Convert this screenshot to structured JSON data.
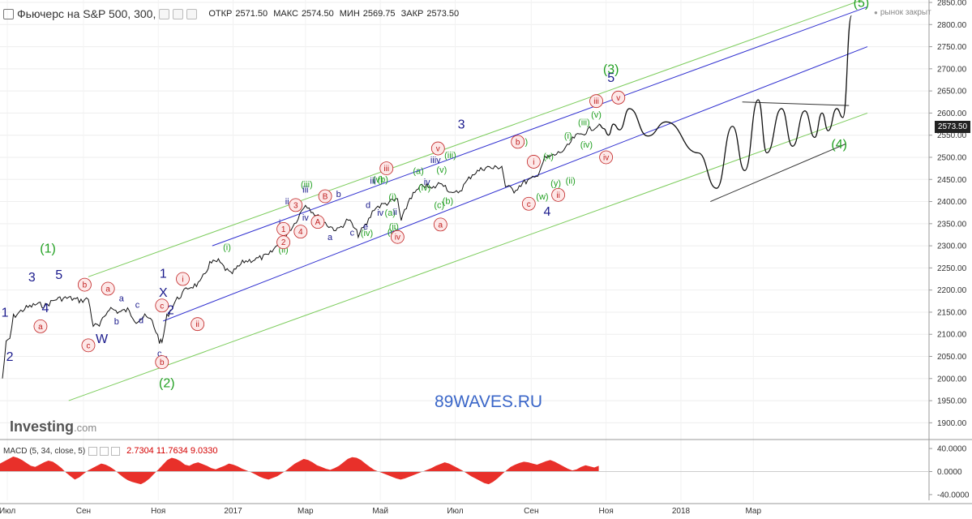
{
  "header": {
    "title": "Фьючерс на S&P 500, 300,",
    "ohlc": [
      {
        "label": "ОТКР",
        "value": "2571.50"
      },
      {
        "label": "МАКС",
        "value": "2574.50"
      },
      {
        "label": "МИН",
        "value": "2569.75"
      },
      {
        "label": "ЗАКР",
        "value": "2573.50"
      }
    ]
  },
  "market_status": "рынок закрыт",
  "last_price": "2573.50",
  "watermark": "89WAVES.RU",
  "logo": {
    "main": "Investing",
    "suffix": ".com"
  },
  "macd": {
    "label": "MACD (5, 34, close, 5)",
    "values": "2.7304  11.7634  9.0330"
  },
  "colors": {
    "price": "#111111",
    "green_wave": "#22a022",
    "blue_wave": "#1a1a8c",
    "red_circle": "#c02020",
    "channel_blue": "#3030d0",
    "channel_green": "#7ccc5c",
    "macd_fill": "#e8302a",
    "label_blue": "#3a66c8"
  },
  "chart_data": [
    {
      "type": "line",
      "series_name": "",
      "ylim": [
        1875,
        2850
      ],
      "y_ticks": [
        "2850.00",
        "2800.00",
        "2750.00",
        "2700.00",
        "2650.00",
        "2600.00",
        "2550.00",
        "2500.00",
        "2450.00",
        "2400.00",
        "2350.00",
        "2300.00",
        "2250.00",
        "2200.00",
        "2150.00",
        "2100.00",
        "2050.00",
        "2000.00",
        "1950.00",
        "1900.00"
      ],
      "x_ticks": [
        "Июл",
        "Сен",
        "Ноя",
        "2017",
        "Мар",
        "Май",
        "Июл",
        "Сен",
        "Ноя",
        "2018",
        "Мар"
      ],
      "price": [
        {
          "x": "2016-06-27",
          "y": 2000
        },
        {
          "x": "2016-06-30",
          "y": 2080
        },
        {
          "x": "2016-07-03",
          "y": 2090
        },
        {
          "x": "2016-07-06",
          "y": 2140
        },
        {
          "x": "2016-07-15",
          "y": 2158
        },
        {
          "x": "2016-07-25",
          "y": 2168
        },
        {
          "x": "2016-08-01",
          "y": 2165
        },
        {
          "x": "2016-08-10",
          "y": 2180
        },
        {
          "x": "2016-08-20",
          "y": 2182
        },
        {
          "x": "2016-08-30",
          "y": 2176
        },
        {
          "x": "2016-09-05",
          "y": 2180
        },
        {
          "x": "2016-09-09",
          "y": 2120
        },
        {
          "x": "2016-09-14",
          "y": 2118
        },
        {
          "x": "2016-09-22",
          "y": 2160
        },
        {
          "x": "2016-09-30",
          "y": 2150
        },
        {
          "x": "2016-10-07",
          "y": 2155
        },
        {
          "x": "2016-10-14",
          "y": 2130
        },
        {
          "x": "2016-10-21",
          "y": 2140
        },
        {
          "x": "2016-10-27",
          "y": 2130
        },
        {
          "x": "2016-11-02",
          "y": 2085
        },
        {
          "x": "2016-11-04",
          "y": 2080
        },
        {
          "x": "2016-11-08",
          "y": 2140
        },
        {
          "x": "2016-11-15",
          "y": 2175
        },
        {
          "x": "2016-11-25",
          "y": 2205
        },
        {
          "x": "2016-12-05",
          "y": 2215
        },
        {
          "x": "2016-12-13",
          "y": 2260
        },
        {
          "x": "2016-12-20",
          "y": 2265
        },
        {
          "x": "2016-12-30",
          "y": 2235
        },
        {
          "x": "2017-01-10",
          "y": 2265
        },
        {
          "x": "2017-01-20",
          "y": 2270
        },
        {
          "x": "2017-01-30",
          "y": 2278
        },
        {
          "x": "2017-02-10",
          "y": 2315
        },
        {
          "x": "2017-02-20",
          "y": 2350
        },
        {
          "x": "2017-03-01",
          "y": 2395
        },
        {
          "x": "2017-03-10",
          "y": 2368
        },
        {
          "x": "2017-03-20",
          "y": 2345
        },
        {
          "x": "2017-03-27",
          "y": 2335
        },
        {
          "x": "2017-04-05",
          "y": 2360
        },
        {
          "x": "2017-04-13",
          "y": 2325
        },
        {
          "x": "2017-04-20",
          "y": 2350
        },
        {
          "x": "2017-04-26",
          "y": 2385
        },
        {
          "x": "2017-05-05",
          "y": 2395
        },
        {
          "x": "2017-05-15",
          "y": 2405
        },
        {
          "x": "2017-05-18",
          "y": 2355
        },
        {
          "x": "2017-05-25",
          "y": 2408
        },
        {
          "x": "2017-06-05",
          "y": 2438
        },
        {
          "x": "2017-06-12",
          "y": 2428
        },
        {
          "x": "2017-06-20",
          "y": 2445
        },
        {
          "x": "2017-06-29",
          "y": 2415
        },
        {
          "x": "2017-07-05",
          "y": 2425
        },
        {
          "x": "2017-07-15",
          "y": 2462
        },
        {
          "x": "2017-07-26",
          "y": 2478
        },
        {
          "x": "2017-08-01",
          "y": 2475
        },
        {
          "x": "2017-08-08",
          "y": 2480
        },
        {
          "x": "2017-08-11",
          "y": 2435
        },
        {
          "x": "2017-08-18",
          "y": 2425
        },
        {
          "x": "2017-08-25",
          "y": 2442
        },
        {
          "x": "2017-09-05",
          "y": 2455
        },
        {
          "x": "2017-09-12",
          "y": 2497
        },
        {
          "x": "2017-09-20",
          "y": 2505
        },
        {
          "x": "2017-09-29",
          "y": 2518
        },
        {
          "x": "2017-10-06",
          "y": 2545
        },
        {
          "x": "2017-10-13",
          "y": 2554
        },
        {
          "x": "2017-10-20",
          "y": 2565
        },
        {
          "x": "2017-10-26",
          "y": 2573.5
        }
      ],
      "forecast": [
        {
          "x": "2017-10-26",
          "y": 2575
        },
        {
          "x": "2017-10-30",
          "y": 2565
        },
        {
          "x": "2017-11-03",
          "y": 2550
        },
        {
          "x": "2017-11-07",
          "y": 2575
        },
        {
          "x": "2017-11-12",
          "y": 2562
        },
        {
          "x": "2017-11-20",
          "y": 2610
        },
        {
          "x": "2017-12-05",
          "y": 2548
        },
        {
          "x": "2017-12-20",
          "y": 2580
        },
        {
          "x": "2018-01-15",
          "y": 2510
        },
        {
          "x": "2018-01-30",
          "y": 2430
        },
        {
          "x": "2018-02-12",
          "y": 2570
        },
        {
          "x": "2018-02-22",
          "y": 2470
        },
        {
          "x": "2018-03-05",
          "y": 2630
        },
        {
          "x": "2018-03-12",
          "y": 2510
        },
        {
          "x": "2018-03-24",
          "y": 2610
        },
        {
          "x": "2018-04-02",
          "y": 2525
        },
        {
          "x": "2018-04-12",
          "y": 2605
        },
        {
          "x": "2018-04-20",
          "y": 2545
        },
        {
          "x": "2018-04-26",
          "y": 2600
        },
        {
          "x": "2018-05-01",
          "y": 2560
        },
        {
          "x": "2018-05-08",
          "y": 2610
        },
        {
          "x": "2018-05-13",
          "y": 2590
        },
        {
          "x": "2018-05-20",
          "y": 2820
        }
      ],
      "wave_labels": [
        {
          "t": "1",
          "x": "2016-06-29",
          "y": 2140,
          "c": "blue"
        },
        {
          "t": "2",
          "x": "2016-07-03",
          "y": 2040,
          "c": "blue"
        },
        {
          "t": "3",
          "x": "2016-07-21",
          "y": 2220,
          "c": "blue"
        },
        {
          "t": "4",
          "x": "2016-08-01",
          "y": 2150,
          "c": "blue"
        },
        {
          "t": "5",
          "x": "2016-08-12",
          "y": 2225,
          "c": "blue"
        },
        {
          "t": "(1)",
          "x": "2016-08-03",
          "y": 2285,
          "c": "green"
        },
        {
          "t": "W",
          "x": "2016-09-16",
          "y": 2080,
          "c": "blue"
        },
        {
          "t": "X",
          "x": "2016-11-05",
          "y": 2185,
          "c": "blue"
        },
        {
          "t": "Y",
          "x": "2016-11-05",
          "y": 2030,
          "c": "blue"
        },
        {
          "t": "(2)",
          "x": "2016-11-08",
          "y": 1980,
          "c": "green"
        },
        {
          "t": "1",
          "x": "2016-11-05",
          "y": 2228,
          "c": "blue"
        },
        {
          "t": "2",
          "x": "2016-11-11",
          "y": 2145,
          "c": "blue"
        },
        {
          "t": "(i)",
          "x": "2016-12-27",
          "y": 2290,
          "c": "green"
        },
        {
          "t": "(ii)",
          "x": "2017-02-11",
          "y": 2285,
          "c": "green"
        },
        {
          "t": "3",
          "x": "2017-07-06",
          "y": 2565,
          "c": "blue"
        },
        {
          "t": "4",
          "x": "2017-09-14",
          "y": 2368,
          "c": "blue"
        },
        {
          "t": "5",
          "x": "2017-11-05",
          "y": 2670,
          "c": "blue"
        },
        {
          "t": "(3)",
          "x": "2017-11-05",
          "y": 2690,
          "c": "green"
        },
        {
          "t": "(4)",
          "x": "2018-05-10",
          "y": 2520,
          "c": "green"
        },
        {
          "t": "(5)",
          "x": "2018-05-28",
          "y": 2840,
          "c": "green"
        },
        {
          "t": "(iii)",
          "x": "2017-10-14",
          "y": 2572,
          "c": "green"
        },
        {
          "t": "(iv)",
          "x": "2017-10-16",
          "y": 2522,
          "c": "green"
        },
        {
          "t": "(v)",
          "x": "2017-10-24",
          "y": 2590,
          "c": "green"
        },
        {
          "t": "(x)",
          "x": "2017-09-15",
          "y": 2495,
          "c": "green"
        },
        {
          "t": "(i)",
          "x": "2017-10-01",
          "y": 2542,
          "c": "green"
        },
        {
          "t": "(ii)",
          "x": "2017-10-03",
          "y": 2440,
          "c": "green"
        },
        {
          "t": "(w)",
          "x": "2017-09-10",
          "y": 2405,
          "c": "green"
        },
        {
          "t": "(y)",
          "x": "2017-09-21",
          "y": 2435,
          "c": "green"
        },
        {
          "t": "(iii)",
          "x": "2017-06-27",
          "y": 2498,
          "c": "green"
        },
        {
          "t": "(v)",
          "x": "2017-06-20",
          "y": 2465,
          "c": "green"
        },
        {
          "t": "(a)",
          "x": "2017-06-01",
          "y": 2462,
          "c": "green"
        },
        {
          "t": "(b)",
          "x": "2017-06-25",
          "y": 2395,
          "c": "green"
        },
        {
          "t": "(c)",
          "x": "2017-06-18",
          "y": 2385,
          "c": "green"
        },
        {
          "t": "(c)",
          "x": "2017-08-25",
          "y": 2528,
          "c": "green"
        },
        {
          "t": "(iv)",
          "x": "2017-06-06",
          "y": 2425,
          "c": "green"
        },
        {
          "t": "(a)",
          "x": "2017-05-09",
          "y": 2368,
          "c": "green"
        },
        {
          "t": "(iii)",
          "x": "2017-03-02",
          "y": 2432,
          "c": "green"
        },
        {
          "t": "(v)",
          "x": "2017-04-29",
          "y": 2443,
          "c": "green"
        },
        {
          "t": "(b)",
          "x": "2017-05-03",
          "y": 2443,
          "c": "green"
        },
        {
          "t": "(c)",
          "x": "2017-05-11",
          "y": 2325,
          "c": "green"
        },
        {
          "t": "(i)",
          "x": "2017-05-11",
          "y": 2404,
          "c": "green"
        },
        {
          "t": "(ii)",
          "x": "2017-05-12",
          "y": 2337,
          "c": "green"
        },
        {
          "t": "(iv)",
          "x": "2017-04-20",
          "y": 2322,
          "c": "green"
        },
        {
          "t": "iii",
          "x": "2017-03-01",
          "y": 2420,
          "c": "blue"
        },
        {
          "t": "iv",
          "x": "2017-03-01",
          "y": 2357,
          "c": "blue"
        },
        {
          "t": "iii",
          "x": "2017-04-25",
          "y": 2440,
          "c": "blue"
        },
        {
          "t": "iv",
          "x": "2017-05-01",
          "y": 2368,
          "c": "blue"
        },
        {
          "t": "ii",
          "x": "2017-05-13",
          "y": 2370,
          "c": "blue"
        },
        {
          "t": "iv",
          "x": "2017-06-08",
          "y": 2438,
          "c": "blue"
        },
        {
          "t": "iiiv",
          "x": "2017-06-15",
          "y": 2487,
          "c": "blue"
        },
        {
          "t": "i",
          "x": "2017-02-08",
          "y": 2345,
          "c": "blue"
        },
        {
          "t": "d",
          "x": "2017-04-21",
          "y": 2385,
          "c": "blue"
        },
        {
          "t": "a",
          "x": "2017-03-21",
          "y": 2313,
          "c": "blue"
        },
        {
          "t": "b",
          "x": "2017-03-28",
          "y": 2410,
          "c": "blue"
        },
        {
          "t": "c",
          "x": "2017-04-08",
          "y": 2323,
          "c": "blue"
        },
        {
          "t": "e",
          "x": "2017-04-19",
          "y": 2337,
          "c": "blue"
        },
        {
          "t": "ii",
          "x": "2017-02-14",
          "y": 2394,
          "c": "blue"
        },
        {
          "t": "a",
          "x": "2016-10-02",
          "y": 2175,
          "c": "blue"
        },
        {
          "t": "b",
          "x": "2016-09-28",
          "y": 2122,
          "c": "blue"
        },
        {
          "t": "c",
          "x": "2016-10-15",
          "y": 2160,
          "c": "blue"
        },
        {
          "t": "d",
          "x": "2016-10-18",
          "y": 2125,
          "c": "blue"
        },
        {
          "t": "c",
          "x": "2016-11-02",
          "y": 2050,
          "c": "blue"
        }
      ],
      "circle_labels": [
        {
          "t": "a",
          "x": "2016-07-28",
          "y": 2118,
          "c": "red"
        },
        {
          "t": "b",
          "x": "2016-09-02",
          "y": 2212,
          "c": "red"
        },
        {
          "t": "a",
          "x": "2016-09-21",
          "y": 2203,
          "c": "red"
        },
        {
          "t": "c",
          "x": "2016-09-05",
          "y": 2075,
          "c": "red"
        },
        {
          "t": "b",
          "x": "2016-11-04",
          "y": 2037,
          "c": "red"
        },
        {
          "t": "c",
          "x": "2016-11-04",
          "y": 2165,
          "c": "red"
        },
        {
          "t": "i",
          "x": "2016-11-21",
          "y": 2225,
          "c": "red"
        },
        {
          "t": "ii",
          "x": "2016-12-03",
          "y": 2123,
          "c": "red"
        },
        {
          "t": "2",
          "x": "2017-02-11",
          "y": 2308,
          "c": "red"
        },
        {
          "t": "1",
          "x": "2017-02-11",
          "y": 2338,
          "c": "red"
        },
        {
          "t": "3",
          "x": "2017-02-21",
          "y": 2392,
          "c": "red"
        },
        {
          "t": "4",
          "x": "2017-02-25",
          "y": 2332,
          "c": "red"
        },
        {
          "t": "A",
          "x": "2017-03-11",
          "y": 2354,
          "c": "red"
        },
        {
          "t": "B",
          "x": "2017-03-17",
          "y": 2412,
          "c": "red"
        },
        {
          "t": "iii",
          "x": "2017-05-06",
          "y": 2475,
          "c": "red"
        },
        {
          "t": "iv",
          "x": "2017-05-15",
          "y": 2320,
          "c": "red"
        },
        {
          "t": "v",
          "x": "2017-06-17",
          "y": 2520,
          "c": "red"
        },
        {
          "t": "a",
          "x": "2017-06-19",
          "y": 2348,
          "c": "red"
        },
        {
          "t": "b",
          "x": "2017-08-21",
          "y": 2535,
          "c": "red"
        },
        {
          "t": "i",
          "x": "2017-09-03",
          "y": 2490,
          "c": "red"
        },
        {
          "t": "c",
          "x": "2017-08-30",
          "y": 2395,
          "c": "red"
        },
        {
          "t": "ii",
          "x": "2017-09-23",
          "y": 2415,
          "c": "red"
        },
        {
          "t": "iii",
          "x": "2017-10-24",
          "y": 2627,
          "c": "red"
        },
        {
          "t": "iv",
          "x": "2017-11-01",
          "y": 2500,
          "c": "red"
        },
        {
          "t": "v",
          "x": "2017-11-11",
          "y": 2635,
          "c": "red"
        }
      ]
    },
    {
      "type": "area",
      "series_name": "MACD (5, 34, close, 5)",
      "ylim": [
        -50,
        50
      ],
      "y_ticks": [
        "40.0000",
        "0.0000",
        "-40.0000"
      ],
      "values": [
        14,
        18,
        22,
        26,
        24,
        20,
        15,
        10,
        8,
        12,
        16,
        19,
        17,
        12,
        6,
        -2,
        -8,
        -14,
        -10,
        -4,
        2,
        6,
        10,
        14,
        12,
        8,
        3,
        -4,
        -10,
        -15,
        -18,
        -20,
        -22,
        -18,
        -12,
        -4,
        4,
        12,
        20,
        24,
        22,
        18,
        12,
        10,
        14,
        16,
        13,
        10,
        6,
        4,
        7,
        10,
        14,
        12,
        9,
        5,
        2,
        -1,
        -5,
        -9,
        -12,
        -14,
        -11,
        -8,
        -3,
        2,
        8,
        14,
        18,
        22,
        20,
        16,
        11,
        8,
        5,
        3,
        6,
        10,
        16,
        22,
        25,
        24,
        20,
        14,
        8,
        3,
        0,
        -3,
        -6,
        -9,
        -12,
        -14,
        -12,
        -9,
        -6,
        -3,
        0,
        3,
        6,
        10,
        13,
        16,
        14,
        10,
        6,
        2,
        -3,
        -8,
        -12,
        -16,
        -20,
        -22,
        -18,
        -12,
        -5,
        2,
        8,
        12,
        15,
        17,
        16,
        14,
        12,
        15,
        18,
        20,
        17,
        13,
        9,
        5,
        2,
        4,
        8,
        11,
        9,
        7,
        10
      ]
    }
  ]
}
